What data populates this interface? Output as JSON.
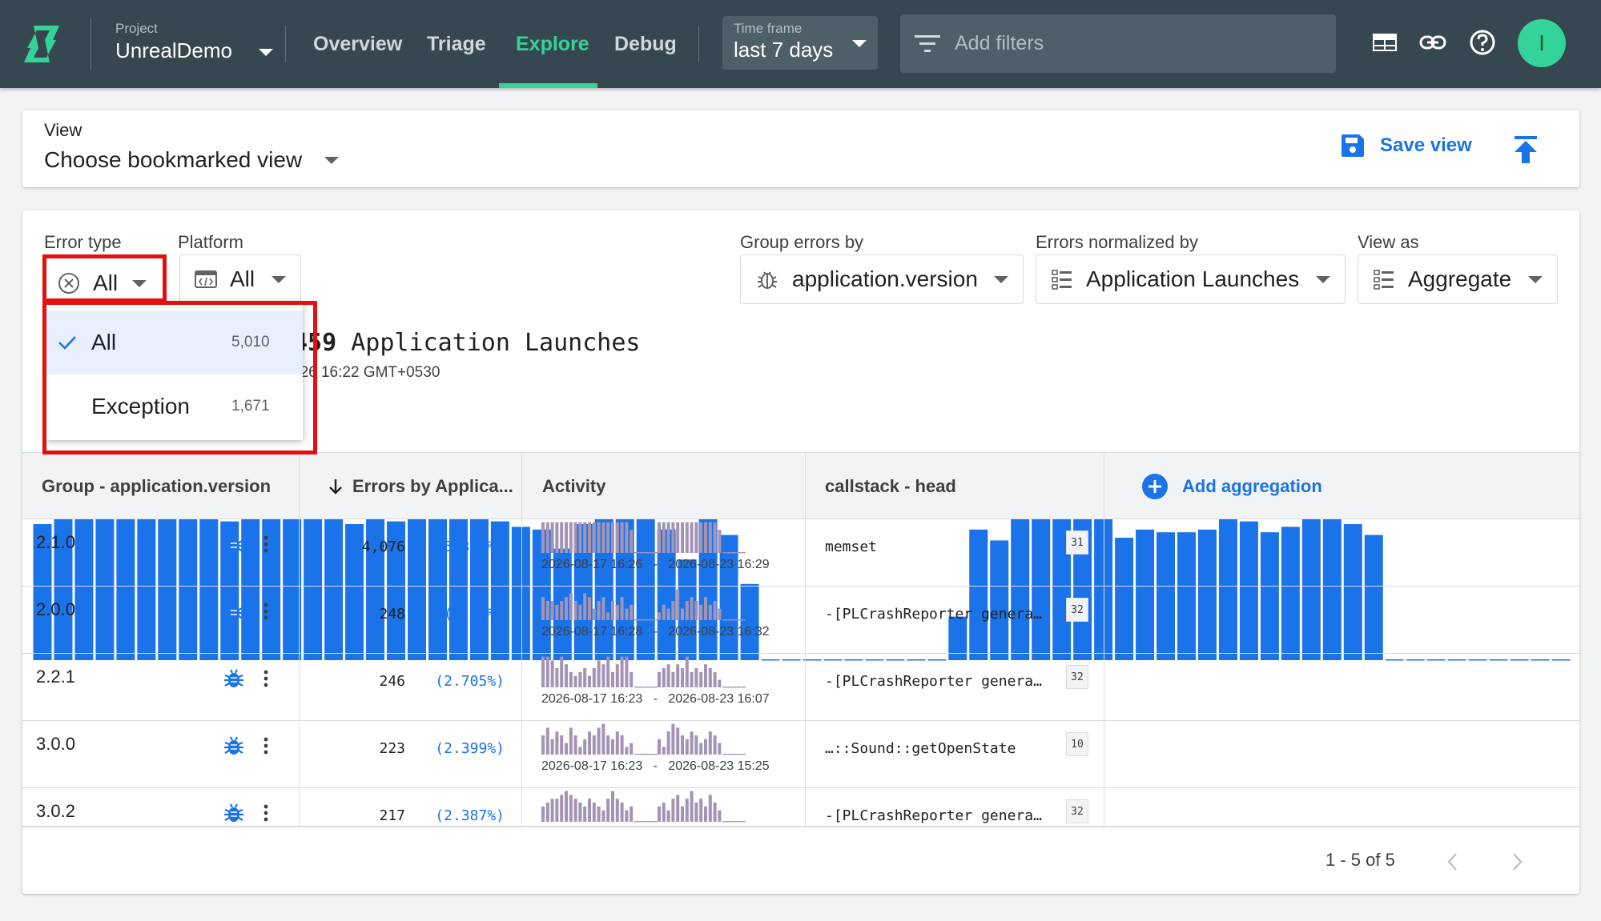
{
  "topbar": {
    "project_label": "Project",
    "project_value": "UnrealDemo",
    "nav": [
      "Overview",
      "Triage",
      "Explore",
      "Debug"
    ],
    "active_nav": "Explore",
    "timeframe_label": "Time frame",
    "timeframe_value": "last 7 days",
    "filters_placeholder": "Add filters",
    "avatar_initial": "I",
    "accent": "#34d399",
    "bar_bg": "#37474f"
  },
  "view": {
    "label": "View",
    "value": "Choose bookmarked view",
    "save_label": "Save view"
  },
  "filters": {
    "error_type_label": "Error type",
    "error_type_value": "All",
    "platform_label": "Platform",
    "platform_value": "All",
    "group_label": "Group errors by",
    "group_value": "application.version",
    "normalized_label": "Errors normalized by",
    "normalized_value": "Application Launches",
    "view_as_label": "View as",
    "view_as_value": "Aggregate"
  },
  "error_type_menu": [
    {
      "label": "All",
      "count": "5,010",
      "selected": true
    },
    {
      "label": "Exception",
      "count": "1,671",
      "selected": false
    }
  ],
  "chart_header": {
    "title_number": "459",
    "title_text": "Application Launches",
    "subtitle": "026 16:22 GMT+0530"
  },
  "chart_data": {
    "type": "bar",
    "color": "#1a73e8",
    "values": [
      0.5,
      0.66,
      0.58,
      0.57,
      0.56,
      0.55,
      0.53,
      0.58,
      0.53,
      0.51,
      0.6,
      0.56,
      0.62,
      0.6,
      0.59,
      0.5,
      0.58,
      0.51,
      0.52,
      0.59,
      0.53,
      0.53,
      0.51,
      0.49,
      0.48,
      0.41,
      0.5,
      0.53,
      0.53,
      0.54,
      0.48,
      0.37,
      0.61,
      0.46,
      0.28,
      0,
      0,
      0,
      0,
      0,
      0,
      0,
      0,
      0,
      0.16,
      0.48,
      0.44,
      0.53,
      0.56,
      0.54,
      0.53,
      0.53,
      0.45,
      0.48,
      0.47,
      0.47,
      0.48,
      0.55,
      0.51,
      0.47,
      0.49,
      0.54,
      0.56,
      0.5,
      0.46,
      0,
      0,
      0,
      0,
      0,
      0,
      0,
      0,
      0
    ]
  },
  "table": {
    "headers": {
      "group": "Group - application.version",
      "errors": "Errors by Applica...",
      "activity": "Activity",
      "callstack": "callstack - head",
      "add": "Add aggregation"
    },
    "rows": [
      {
        "version": "2.1.0",
        "errors": "4,076",
        "pct": "(15.327%)",
        "start": "2026-08-17 16:26",
        "end": "2026-08-23 16:29",
        "stack": "memset",
        "badge": "31",
        "spark": [
          8,
          8,
          8,
          8,
          8,
          8,
          8,
          8,
          8,
          8,
          8,
          8,
          8,
          8,
          8,
          8,
          8,
          8,
          8,
          6,
          0,
          0,
          0,
          0,
          0,
          8,
          8,
          8,
          8,
          8,
          8,
          8,
          8,
          8,
          8,
          8,
          8,
          8,
          6,
          0,
          0,
          0,
          0,
          0
        ]
      },
      {
        "version": "2.0.0",
        "errors": "248",
        "pct": "(2.74%)",
        "start": "2026-08-17 16:28",
        "end": "2026-08-23 16:32",
        "stack": "-[PLCrashReporter genera…",
        "badge": "32",
        "spark": [
          6,
          5,
          5,
          4,
          5,
          6,
          7,
          5,
          4,
          7,
          6,
          3,
          5,
          6,
          2,
          5,
          4,
          6,
          3,
          4,
          0,
          0,
          0,
          0,
          0,
          2,
          4,
          3,
          5,
          8,
          3,
          5,
          6,
          5,
          4,
          6,
          4,
          5,
          3,
          0,
          0,
          0,
          0,
          0
        ]
      },
      {
        "version": "2.2.1",
        "errors": "246",
        "pct": "(2.705%)",
        "start": "2026-08-17 16:23",
        "end": "2026-08-23 16:07",
        "stack": "-[PLCrashReporter genera…",
        "badge": "32",
        "spark": [
          8,
          8,
          7,
          5,
          8,
          6,
          4,
          3,
          4,
          5,
          3,
          5,
          7,
          6,
          8,
          4,
          6,
          8,
          8,
          4,
          0,
          0,
          0,
          0,
          0,
          4,
          5,
          6,
          4,
          6,
          5,
          8,
          4,
          5,
          4,
          6,
          5,
          4,
          2,
          0,
          0,
          0,
          0,
          0
        ]
      },
      {
        "version": "3.0.0",
        "errors": "223",
        "pct": "(2.399%)",
        "start": "2026-08-17 16:23",
        "end": "2026-08-23 15:25",
        "stack": "…::Sound::getOpenState",
        "badge": "10",
        "spark": [
          5,
          7,
          4,
          6,
          5,
          3,
          7,
          5,
          2,
          4,
          6,
          5,
          7,
          8,
          5,
          4,
          6,
          5,
          2,
          3,
          0,
          0,
          0,
          0,
          0,
          4,
          2,
          6,
          8,
          7,
          5,
          4,
          6,
          5,
          3,
          4,
          6,
          5,
          3,
          0,
          0,
          0,
          0,
          0
        ]
      },
      {
        "version": "3.0.2",
        "errors": "217",
        "pct": "(2.387%)",
        "start": "",
        "end": "",
        "stack": "-[PLCrashReporter genera…",
        "badge": "32",
        "spark": [
          4,
          5,
          6,
          6,
          7,
          8,
          7,
          6,
          5,
          4,
          6,
          5,
          4,
          3,
          6,
          8,
          6,
          5,
          3,
          4,
          0,
          0,
          0,
          0,
          0,
          4,
          5,
          3,
          6,
          7,
          4,
          6,
          8,
          5,
          6,
          4,
          7,
          5,
          3,
          0,
          0,
          0,
          0,
          0
        ]
      }
    ],
    "pagination": "1 - 5 of 5"
  }
}
